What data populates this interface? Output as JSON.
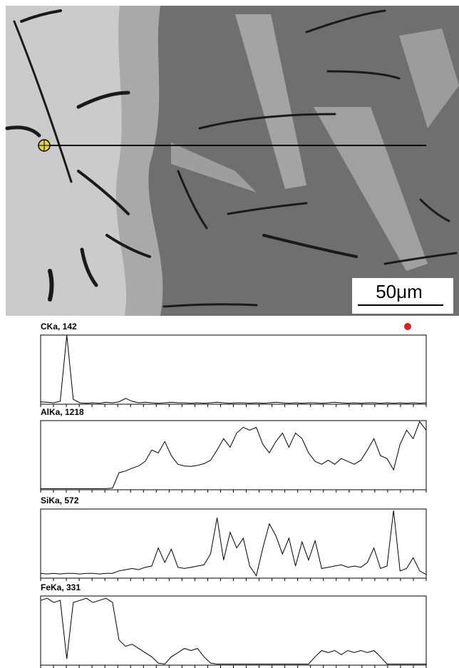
{
  "scale_bar": {
    "label": "50μm"
  },
  "chart_data": [
    {
      "type": "line",
      "title": "CKa, 142",
      "color": "#000000",
      "ylim": [
        0,
        142
      ],
      "values": [
        5,
        4,
        3,
        6,
        142,
        10,
        3,
        2,
        3,
        2,
        4,
        3,
        5,
        12,
        6,
        3,
        4,
        3,
        2,
        3,
        4,
        3,
        3,
        2,
        3,
        2,
        3,
        4,
        3,
        2,
        3,
        3,
        2,
        3,
        2,
        3,
        4,
        3,
        2,
        3,
        2,
        3,
        3,
        2,
        3,
        4,
        3,
        2,
        3,
        2,
        3,
        3,
        2,
        3,
        2,
        3,
        2,
        3,
        2,
        3
      ]
    },
    {
      "type": "line",
      "title": "AlKa, 1218",
      "color": "#000000",
      "ylim": [
        0,
        1218
      ],
      "values": [
        20,
        20,
        20,
        20,
        20,
        20,
        20,
        20,
        20,
        20,
        20,
        30,
        300,
        330,
        380,
        420,
        500,
        700,
        650,
        850,
        600,
        450,
        420,
        410,
        430,
        460,
        520,
        700,
        900,
        750,
        1000,
        1100,
        1050,
        1100,
        800,
        650,
        850,
        1000,
        750,
        1000,
        900,
        650,
        500,
        450,
        520,
        450,
        550,
        500,
        450,
        520,
        700,
        900,
        600,
        550,
        350,
        800,
        1050,
        900,
        1200,
        1050
      ]
    },
    {
      "type": "line",
      "title": "SiKa, 572",
      "color": "#000000",
      "ylim": [
        0,
        572
      ],
      "values": [
        40,
        35,
        40,
        35,
        40,
        40,
        35,
        40,
        40,
        35,
        40,
        40,
        60,
        70,
        80,
        70,
        90,
        100,
        250,
        130,
        240,
        90,
        80,
        90,
        100,
        110,
        200,
        500,
        150,
        380,
        250,
        330,
        100,
        20,
        250,
        450,
        350,
        200,
        330,
        100,
        300,
        150,
        310,
        80,
        90,
        100,
        110,
        90,
        100,
        90,
        130,
        250,
        80,
        100,
        560,
        60,
        80,
        170,
        60,
        30
      ]
    },
    {
      "type": "line",
      "title": "FeKa, 331",
      "color": "#000000",
      "ylim": [
        0,
        331
      ],
      "values": [
        310,
        320,
        300,
        310,
        30,
        300,
        310,
        320,
        300,
        310,
        320,
        300,
        120,
        90,
        100,
        80,
        60,
        40,
        10,
        5,
        40,
        60,
        80,
        70,
        80,
        40,
        10,
        5,
        5,
        5,
        5,
        5,
        5,
        5,
        5,
        5,
        5,
        5,
        5,
        5,
        5,
        5,
        40,
        70,
        60,
        70,
        50,
        70,
        60,
        70,
        60,
        70,
        40,
        5,
        5,
        5,
        5,
        5,
        5,
        5
      ]
    }
  ]
}
